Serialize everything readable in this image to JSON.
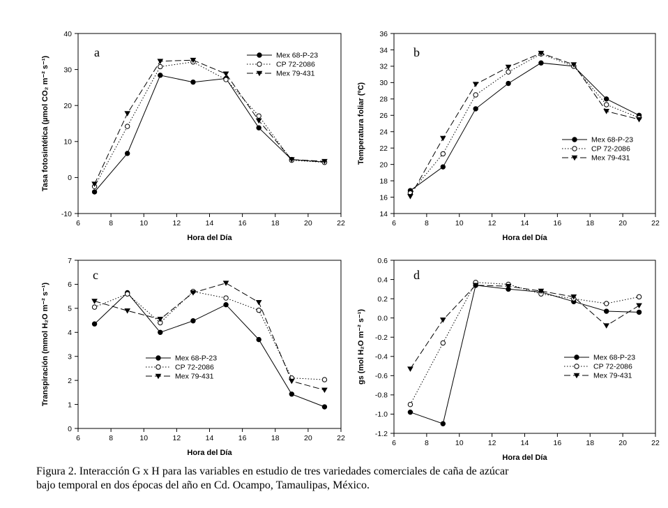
{
  "caption": {
    "line1": "Figura 2. Interacción G x H para las variables en estudio de tres variedades comerciales de caña de azúcar",
    "line2": "bajo temporal en dos épocas del año en Cd. Ocampo, Tamaulipas, México."
  },
  "chart_data": [
    {
      "type": "line",
      "panel": "a",
      "ylabel": "Tasa fotosintética (µmol CO₂ m⁻² s⁻¹)",
      "xlabel": "Hora del Día",
      "xlim": [
        6,
        22
      ],
      "xticks": [
        6,
        8,
        10,
        12,
        14,
        16,
        18,
        20,
        22
      ],
      "ylim": [
        -10,
        40
      ],
      "yticks": [
        -10,
        0,
        10,
        20,
        30,
        40
      ],
      "x": [
        7,
        9,
        11,
        13,
        15,
        17,
        19,
        21
      ],
      "legend_position": "top-right",
      "series": [
        {
          "name": "Mex 68-P-23",
          "values": [
            -4,
            6.7,
            28.4,
            26.5,
            27.5,
            13.8,
            5,
            4.3
          ]
        },
        {
          "name": "CP 72-2086",
          "values": [
            -2.5,
            14.2,
            30.8,
            32.1,
            27.2,
            17.1,
            4.8,
            4.2
          ]
        },
        {
          "name": "Mex 79-431",
          "values": [
            -1.8,
            17.8,
            32.3,
            32.6,
            28.8,
            15.8,
            5,
            4.5
          ]
        }
      ]
    },
    {
      "type": "line",
      "panel": "b",
      "ylabel": "Temperatura foliar (ºC)",
      "xlabel": "Hora del Día",
      "xlim": [
        6,
        22
      ],
      "xticks": [
        6,
        8,
        10,
        12,
        14,
        16,
        18,
        20,
        22
      ],
      "ylim": [
        14,
        36
      ],
      "yticks": [
        14,
        16,
        18,
        20,
        22,
        24,
        26,
        28,
        30,
        32,
        34,
        36
      ],
      "x": [
        7,
        9,
        11,
        13,
        15,
        17,
        19,
        21
      ],
      "legend_position": "bottom-right",
      "series": [
        {
          "name": "Mex 68-P-23",
          "values": [
            16.8,
            19.7,
            26.8,
            29.9,
            32.4,
            32,
            28,
            26
          ]
        },
        {
          "name": "CP 72-2086",
          "values": [
            16.5,
            21.3,
            28.5,
            31.3,
            33.5,
            32,
            27.3,
            25.7
          ]
        },
        {
          "name": "Mex 79-431",
          "values": [
            16.1,
            23.2,
            29.8,
            31.9,
            33.6,
            32.2,
            26.5,
            25.5
          ]
        }
      ]
    },
    {
      "type": "line",
      "panel": "c",
      "ylabel": "Transpiración (mmol H₂O m⁻² s⁻¹)",
      "xlabel": "Hora del Día",
      "xlim": [
        6,
        22
      ],
      "xticks": [
        6,
        8,
        10,
        12,
        14,
        16,
        18,
        20,
        22
      ],
      "ylim": [
        0,
        7
      ],
      "yticks": [
        0,
        1,
        2,
        3,
        4,
        5,
        6,
        7
      ],
      "x": [
        7,
        9,
        11,
        13,
        15,
        17,
        19,
        21
      ],
      "legend_position": "center",
      "series": [
        {
          "name": "Mex 68-P-23",
          "values": [
            4.35,
            5.65,
            4,
            4.48,
            5.15,
            3.7,
            1.43,
            0.9
          ]
        },
        {
          "name": "CP 72-2086",
          "values": [
            5.05,
            5.6,
            4.4,
            5.7,
            5.43,
            4.92,
            2.1,
            2.03
          ]
        },
        {
          "name": "Mex 79-431",
          "values": [
            5.3,
            4.9,
            4.55,
            5.65,
            6.05,
            5.25,
            1.97,
            1.6
          ]
        }
      ]
    },
    {
      "type": "line",
      "panel": "d",
      "ylabel": "gs (mol H₂O m⁻² s⁻¹)",
      "xlabel": "Hora del Día",
      "xlim": [
        6,
        22
      ],
      "xticks": [
        6,
        8,
        10,
        12,
        14,
        16,
        18,
        20,
        22
      ],
      "ylim": [
        -1.2,
        0.6
      ],
      "yticks": [
        -1.2,
        -1.0,
        -0.8,
        -0.6,
        -0.4,
        -0.2,
        0.0,
        0.2,
        0.4,
        0.6
      ],
      "x": [
        7,
        9,
        11,
        13,
        15,
        17,
        19,
        21
      ],
      "legend_position": "bottom-right",
      "series": [
        {
          "name": "Mex 68-P-23",
          "values": [
            -0.98,
            -1.1,
            0.34,
            0.3,
            0.27,
            0.17,
            0.07,
            0.06
          ]
        },
        {
          "name": "CP 72-2086",
          "values": [
            -0.9,
            -0.26,
            0.37,
            0.35,
            0.25,
            0.2,
            0.15,
            0.22
          ]
        },
        {
          "name": "Mex 79-431",
          "values": [
            -0.53,
            -0.02,
            0.34,
            0.33,
            0.28,
            0.22,
            -0.08,
            0.13
          ]
        }
      ]
    }
  ]
}
